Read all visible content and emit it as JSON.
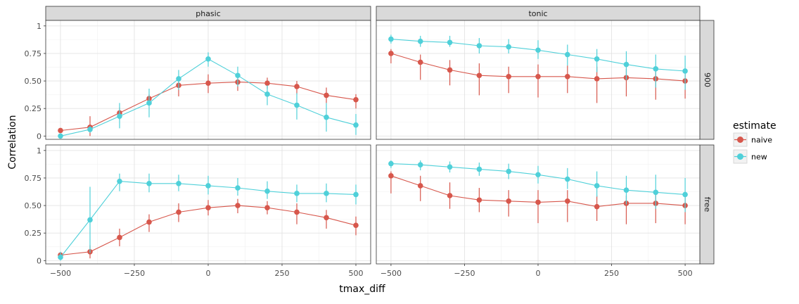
{
  "chart_data": {
    "type": "line",
    "xlabel": "tmax_diff",
    "ylabel": "Correlation",
    "xlim": [
      -550,
      550
    ],
    "ylim": [
      -0.03,
      1.05
    ],
    "x_ticks": [
      -500,
      -250,
      0,
      250,
      500
    ],
    "x_tick_labels": [
      "−500",
      "−250",
      "0",
      "250",
      "500"
    ],
    "y_ticks": [
      0,
      0.25,
      0.5,
      0.75,
      1
    ],
    "y_tick_labels": [
      "0",
      "0.25",
      "0.50",
      "0.75",
      "1"
    ],
    "grid": true,
    "legend_position": "right",
    "legend": {
      "title": "estimate",
      "entries": [
        {
          "name": "naive",
          "color": "#d7574c"
        },
        {
          "name": "new",
          "color": "#4fd0d9"
        }
      ]
    },
    "columns": [
      "phasic",
      "tonic"
    ],
    "rows": [
      "900",
      "free"
    ],
    "x": [
      -500,
      -400,
      -300,
      -200,
      -100,
      0,
      100,
      200,
      300,
      400,
      500
    ],
    "panels": [
      {
        "column": "phasic",
        "row": "900",
        "series": [
          {
            "name": "naive",
            "color": "#d7574c",
            "y": [
              0.05,
              0.08,
              0.21,
              0.34,
              0.46,
              0.48,
              0.49,
              0.48,
              0.45,
              0.37,
              0.33
            ],
            "lo": [
              0.05,
              0.0,
              0.15,
              0.29,
              0.36,
              0.39,
              0.41,
              0.43,
              0.38,
              0.3,
              0.25
            ],
            "hi": [
              0.05,
              0.18,
              0.26,
              0.38,
              0.52,
              0.56,
              0.55,
              0.53,
              0.5,
              0.44,
              0.38
            ]
          },
          {
            "name": "new",
            "color": "#4fd0d9",
            "y": [
              0.0,
              0.06,
              0.18,
              0.3,
              0.52,
              0.7,
              0.55,
              0.38,
              0.28,
              0.17,
              0.1
            ],
            "lo": [
              0.0,
              0.03,
              0.07,
              0.17,
              0.42,
              0.63,
              0.45,
              0.28,
              0.15,
              0.04,
              0.01
            ],
            "hi": [
              0.0,
              0.09,
              0.3,
              0.43,
              0.6,
              0.76,
              0.63,
              0.46,
              0.39,
              0.3,
              0.2
            ]
          }
        ]
      },
      {
        "column": "tonic",
        "row": "900",
        "series": [
          {
            "name": "naive",
            "color": "#d7574c",
            "y": [
              0.75,
              0.67,
              0.6,
              0.55,
              0.54,
              0.54,
              0.54,
              0.52,
              0.53,
              0.52,
              0.5
            ],
            "lo": [
              0.66,
              0.51,
              0.46,
              0.37,
              0.39,
              0.35,
              0.39,
              0.3,
              0.36,
              0.33,
              0.34
            ],
            "hi": [
              0.79,
              0.74,
              0.69,
              0.66,
              0.63,
              0.65,
              0.64,
              0.63,
              0.61,
              0.62,
              0.59
            ]
          },
          {
            "name": "new",
            "color": "#4fd0d9",
            "y": [
              0.88,
              0.86,
              0.85,
              0.82,
              0.81,
              0.78,
              0.74,
              0.7,
              0.65,
              0.61,
              0.59
            ],
            "lo": [
              0.84,
              0.81,
              0.81,
              0.75,
              0.75,
              0.7,
              0.64,
              0.58,
              0.51,
              0.44,
              0.42
            ],
            "hi": [
              0.92,
              0.91,
              0.91,
              0.89,
              0.88,
              0.87,
              0.83,
              0.79,
              0.77,
              0.74,
              0.73
            ]
          }
        ]
      },
      {
        "column": "phasic",
        "row": "free",
        "series": [
          {
            "name": "naive",
            "color": "#d7574c",
            "y": [
              0.05,
              0.08,
              0.21,
              0.35,
              0.44,
              0.48,
              0.5,
              0.48,
              0.44,
              0.39,
              0.32
            ],
            "lo": [
              0.05,
              0.02,
              0.13,
              0.26,
              0.35,
              0.41,
              0.43,
              0.42,
              0.33,
              0.29,
              0.23
            ],
            "hi": [
              0.05,
              0.14,
              0.29,
              0.42,
              0.52,
              0.55,
              0.56,
              0.54,
              0.52,
              0.46,
              0.4
            ]
          },
          {
            "name": "new",
            "color": "#4fd0d9",
            "y": [
              0.03,
              0.37,
              0.72,
              0.7,
              0.7,
              0.68,
              0.66,
              0.63,
              0.61,
              0.61,
              0.6
            ],
            "lo": [
              0.0,
              0.07,
              0.63,
              0.62,
              0.63,
              0.6,
              0.59,
              0.56,
              0.53,
              0.53,
              0.51
            ],
            "hi": [
              0.08,
              0.67,
              0.79,
              0.79,
              0.78,
              0.77,
              0.75,
              0.72,
              0.69,
              0.7,
              0.69
            ]
          }
        ]
      },
      {
        "column": "tonic",
        "row": "free",
        "series": [
          {
            "name": "naive",
            "color": "#d7574c",
            "y": [
              0.77,
              0.68,
              0.59,
              0.55,
              0.54,
              0.53,
              0.54,
              0.49,
              0.52,
              0.52,
              0.5
            ],
            "lo": [
              0.61,
              0.54,
              0.47,
              0.44,
              0.4,
              0.34,
              0.35,
              0.36,
              0.33,
              0.34,
              0.33
            ],
            "hi": [
              0.81,
              0.77,
              0.71,
              0.66,
              0.64,
              0.64,
              0.64,
              0.59,
              0.59,
              0.61,
              0.58
            ]
          },
          {
            "name": "new",
            "color": "#4fd0d9",
            "y": [
              0.88,
              0.87,
              0.85,
              0.83,
              0.81,
              0.78,
              0.74,
              0.68,
              0.64,
              0.62,
              0.6
            ],
            "lo": [
              0.84,
              0.82,
              0.8,
              0.77,
              0.74,
              0.7,
              0.65,
              0.58,
              0.51,
              0.47,
              0.44
            ],
            "hi": [
              0.91,
              0.91,
              0.9,
              0.89,
              0.88,
              0.86,
              0.84,
              0.81,
              0.77,
              0.78,
              0.75
            ]
          }
        ]
      }
    ]
  }
}
